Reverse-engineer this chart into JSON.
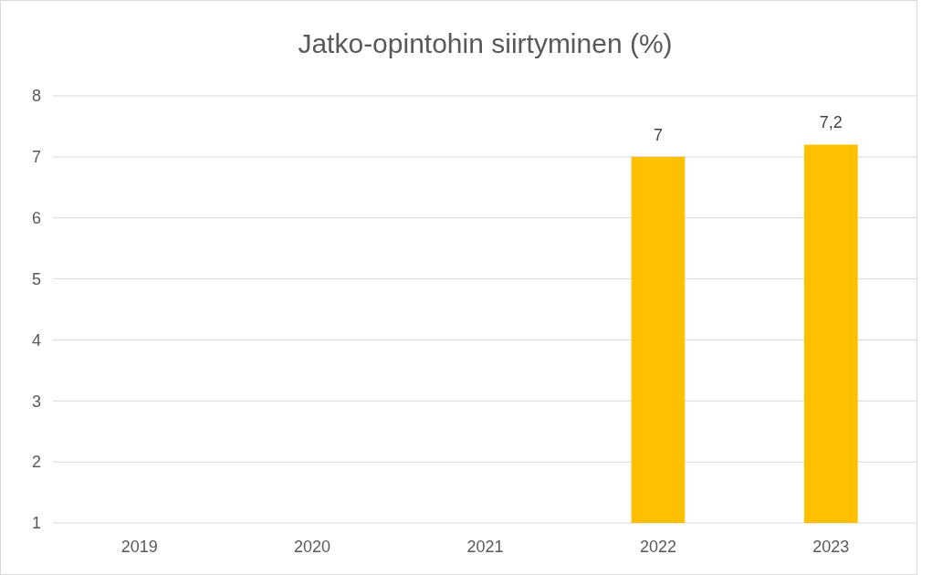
{
  "chart_data": {
    "type": "bar",
    "title": "Jatko-opintohin siirtyminen (%)",
    "categories": [
      "2019",
      "2020",
      "2021",
      "2022",
      "2023"
    ],
    "values": [
      null,
      null,
      null,
      7,
      7.2
    ],
    "value_labels": [
      null,
      null,
      null,
      "7",
      "7,2"
    ],
    "color": "#ffc000",
    "ylim": [
      1,
      8
    ],
    "yticks": [
      1,
      2,
      3,
      4,
      5,
      6,
      7,
      8
    ],
    "grid": "y"
  }
}
